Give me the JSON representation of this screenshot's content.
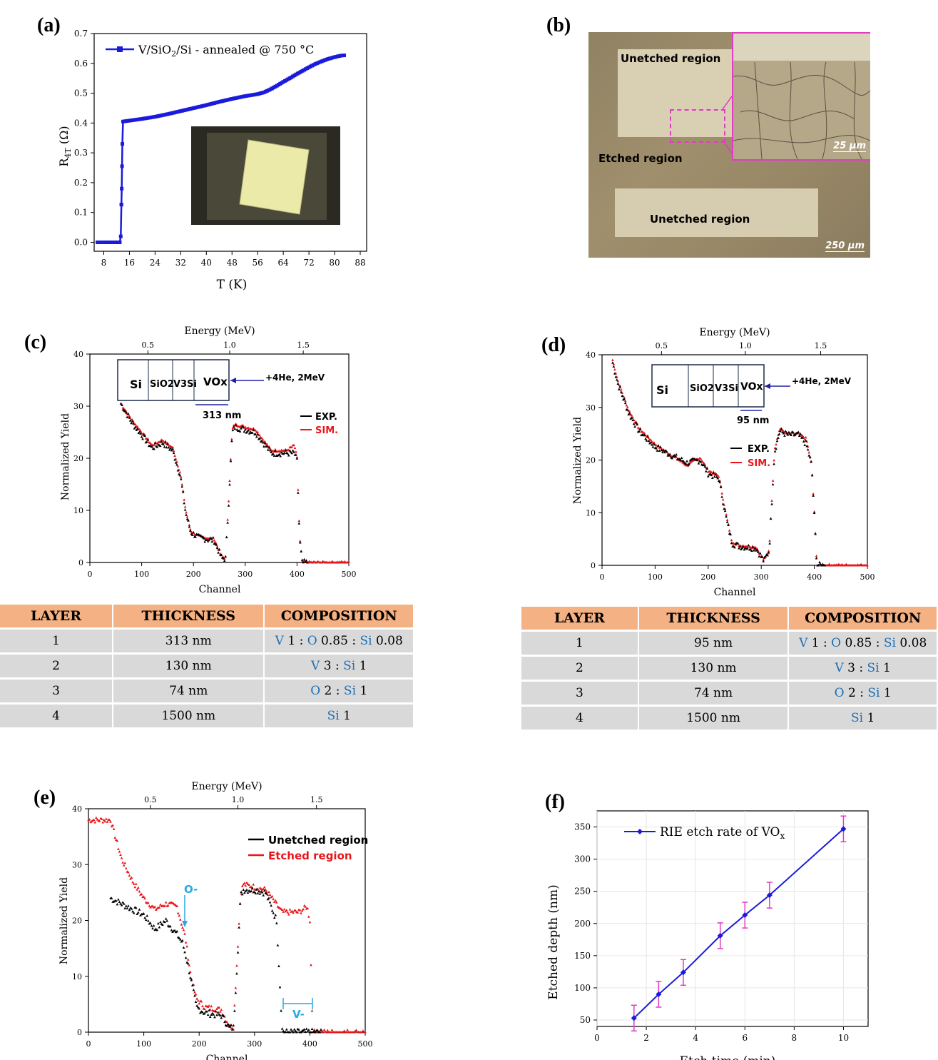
{
  "panel_labels": {
    "a": "(a)",
    "b": "(b)",
    "c": "(c)",
    "d": "(d)",
    "e": "(e)",
    "f": "(f)"
  },
  "colors": {
    "blue": "#1a1adc",
    "red": "#e8161b",
    "black": "#000000",
    "magenta": "#e23bc4",
    "cyan": "#29a9e0",
    "table_header": "#f4b183",
    "table_row": "#d9d9d9",
    "element": "#1f6fb4"
  },
  "panel_a": {
    "legend": "V/SiO2/Si - annealed @ 750 °C",
    "legend_parts": {
      "a": "V/SiO",
      "sub": "2",
      "b": "/Si - annealed @ 750 °C"
    },
    "xlabel": "T (K)",
    "ylabel": "R4T (Ω)",
    "ylabel_parts": {
      "a": "R",
      "sub": "4T",
      "b": " (Ω)"
    },
    "x_ticks": [
      "8",
      "16",
      "24",
      "32",
      "40",
      "48",
      "56",
      "64",
      "72",
      "80",
      "88"
    ],
    "y_ticks": [
      "0.0",
      "0.1",
      "0.2",
      "0.3",
      "0.4",
      "0.5",
      "0.6",
      "0.7"
    ],
    "inset": "photo of sample mounted in holder"
  },
  "panel_b": {
    "labels": [
      "Unetched region",
      "Etched region",
      "Unetched region"
    ],
    "scale_small": "25 µm",
    "scale_large": "250 µm"
  },
  "panel_c": {
    "top_axis_label": "Energy (MeV)",
    "top_ticks": [
      "0.5",
      "1.0",
      "1.5"
    ],
    "xlabel": "Channel",
    "ylabel": "Normalized Yield",
    "x_ticks": [
      "0",
      "100",
      "200",
      "300",
      "400",
      "500"
    ],
    "y_ticks": [
      "0",
      "10",
      "20",
      "30",
      "40"
    ],
    "stack": [
      "Si",
      "SiO2",
      "V3Si",
      "VOx"
    ],
    "beam": "+4He, 2MeV",
    "thickness": "313 nm",
    "legend": [
      "EXP.",
      "SIM."
    ]
  },
  "panel_d": {
    "top_axis_label": "Energy (MeV)",
    "top_ticks": [
      "0.5",
      "1.0",
      "1.5"
    ],
    "xlabel": "Channel",
    "ylabel": "Normalized Yield",
    "x_ticks": [
      "0",
      "100",
      "200",
      "300",
      "400",
      "500"
    ],
    "y_ticks": [
      "0",
      "10",
      "20",
      "30",
      "40"
    ],
    "stack": [
      "Si",
      "SiO2",
      "V3Si",
      "VOx"
    ],
    "beam": "+4He, 2MeV",
    "thickness": "95 nm",
    "legend": [
      "EXP.",
      "SIM."
    ]
  },
  "table_c": {
    "headers": [
      "LAYER",
      "THICKNESS",
      "COMPOSITION"
    ],
    "rows": [
      {
        "layer": "1",
        "thickness": "313 nm",
        "comp": [
          [
            "V",
            " 1 : "
          ],
          [
            "O",
            " 0.85 : "
          ],
          [
            "Si",
            " 0.08"
          ]
        ]
      },
      {
        "layer": "2",
        "thickness": "130 nm",
        "comp": [
          [
            "V",
            " 3 : "
          ],
          [
            "Si",
            " 1"
          ]
        ]
      },
      {
        "layer": "3",
        "thickness": "74 nm",
        "comp": [
          [
            "O",
            " 2 : "
          ],
          [
            "Si",
            " 1"
          ]
        ]
      },
      {
        "layer": "4",
        "thickness": "1500 nm",
        "comp": [
          [
            "Si",
            " 1"
          ]
        ]
      }
    ]
  },
  "table_d": {
    "headers": [
      "LAYER",
      "THICKNESS",
      "COMPOSITION"
    ],
    "rows": [
      {
        "layer": "1",
        "thickness": "95 nm",
        "comp": [
          [
            "V",
            " 1 : "
          ],
          [
            "O",
            " 0.85 : "
          ],
          [
            "Si",
            " 0.08"
          ]
        ]
      },
      {
        "layer": "2",
        "thickness": "130 nm",
        "comp": [
          [
            "V",
            " 3 : "
          ],
          [
            "Si",
            " 1"
          ]
        ]
      },
      {
        "layer": "3",
        "thickness": "74 nm",
        "comp": [
          [
            "O",
            " 2 : "
          ],
          [
            "Si",
            " 1"
          ]
        ]
      },
      {
        "layer": "4",
        "thickness": "1500 nm",
        "comp": [
          [
            "Si",
            " 1"
          ]
        ]
      }
    ]
  },
  "panel_e": {
    "top_axis_label": "Energy (MeV)",
    "top_ticks": [
      "0.5",
      "1.0",
      "1.5"
    ],
    "xlabel": "Channel",
    "ylabel": "Normalized Yield",
    "x_ticks": [
      "0",
      "100",
      "200",
      "300",
      "400",
      "500"
    ],
    "y_ticks": [
      "0",
      "10",
      "20",
      "30",
      "40"
    ],
    "legend": [
      "Unetched region",
      "Etched region"
    ],
    "annot_o": "O-",
    "annot_v": "V-"
  },
  "panel_f": {
    "legend": "RIE etch rate of VOx",
    "legend_parts": {
      "a": "RIE etch rate of VO",
      "sub": "x"
    },
    "xlabel": "Etch time (min)",
    "ylabel": "Etched depth (nm)",
    "x_ticks": [
      "0",
      "2",
      "4",
      "6",
      "8",
      "10"
    ],
    "y_ticks": [
      "50",
      "100",
      "150",
      "200",
      "250",
      "300",
      "350"
    ]
  },
  "chart_data": [
    {
      "id": "a",
      "type": "line",
      "xlabel": "T (K)",
      "ylabel": "R4T (Ω)",
      "xlim": [
        5,
        90
      ],
      "ylim": [
        -0.03,
        0.7
      ],
      "series": [
        {
          "name": "V/SiO2/Si - annealed @ 750 °C",
          "x": [
            6,
            8,
            10,
            12,
            13,
            13.3,
            13.6,
            13.8,
            14,
            16,
            20,
            24,
            28,
            32,
            36,
            40,
            44,
            48,
            52,
            56,
            58,
            60,
            62,
            64,
            66,
            68,
            70,
            72,
            74,
            76,
            78,
            80,
            82,
            83
          ],
          "y": [
            0.0,
            0.0,
            0.0,
            0.0,
            0.0,
            0.02,
            0.18,
            0.33,
            0.405,
            0.408,
            0.414,
            0.421,
            0.43,
            0.44,
            0.45,
            0.46,
            0.471,
            0.481,
            0.49,
            0.497,
            0.503,
            0.513,
            0.525,
            0.538,
            0.55,
            0.563,
            0.575,
            0.587,
            0.598,
            0.607,
            0.615,
            0.621,
            0.626,
            0.627
          ]
        }
      ]
    },
    {
      "id": "c",
      "type": "scatter",
      "xlabel": "Channel",
      "ylabel": "Normalized Yield",
      "xlim": [
        0,
        500
      ],
      "ylim": [
        0,
        40
      ],
      "series": [
        {
          "name": "EXP.",
          "x": [
            60,
            80,
            100,
            120,
            140,
            160,
            175,
            185,
            195,
            210,
            240,
            255,
            262,
            268,
            275,
            280,
            300,
            320,
            350,
            380,
            395,
            400,
            405,
            410,
            450,
            500
          ],
          "y": [
            30.5,
            27.5,
            25,
            22.5,
            23.5,
            22,
            17,
            10,
            6,
            5,
            4.5,
            1,
            1,
            12,
            25.5,
            26.5,
            26,
            25.5,
            21.5,
            21.5,
            22.5,
            20,
            5,
            0,
            0,
            0
          ]
        },
        {
          "name": "SIM.",
          "x": [
            60,
            80,
            100,
            120,
            140,
            160,
            175,
            185,
            195,
            210,
            240,
            255,
            262,
            268,
            275,
            280,
            300,
            320,
            350,
            380,
            395,
            400,
            405,
            410,
            450,
            500
          ],
          "y": [
            30.5,
            27,
            24.5,
            22,
            23,
            21.5,
            16.5,
            9.5,
            5.8,
            4.8,
            4.2,
            0.8,
            0.8,
            11.5,
            25,
            26,
            25.5,
            25,
            21,
            21,
            21,
            19.5,
            4.5,
            0,
            0,
            0
          ]
        }
      ]
    },
    {
      "id": "d",
      "type": "scatter",
      "xlabel": "Channel",
      "ylabel": "Normalized Yield",
      "xlim": [
        0,
        500
      ],
      "ylim": [
        0,
        40
      ],
      "series": [
        {
          "name": "EXP.",
          "x": [
            20,
            30,
            50,
            70,
            100,
            130,
            160,
            185,
            200,
            220,
            235,
            245,
            260,
            290,
            305,
            315,
            325,
            335,
            350,
            370,
            385,
            395,
            400,
            405,
            450,
            500
          ],
          "y": [
            39,
            35,
            29.5,
            26,
            23,
            21,
            19,
            20.5,
            18,
            17,
            9,
            4.5,
            3.8,
            3.5,
            1,
            3,
            22,
            26,
            25,
            25,
            24,
            19,
            10,
            0,
            0,
            0
          ]
        },
        {
          "name": "SIM.",
          "x": [
            20,
            30,
            50,
            70,
            100,
            130,
            160,
            185,
            200,
            220,
            235,
            245,
            260,
            290,
            305,
            315,
            325,
            335,
            350,
            370,
            385,
            395,
            400,
            405,
            450,
            500
          ],
          "y": [
            38.5,
            34.5,
            29,
            25.5,
            22.5,
            21,
            19.5,
            20,
            17.5,
            16.5,
            8.5,
            4.2,
            3.6,
            3.3,
            0.8,
            2.8,
            21.5,
            25.5,
            24.8,
            24.8,
            23,
            19,
            9.5,
            0,
            0,
            0
          ]
        }
      ]
    },
    {
      "id": "e",
      "type": "scatter",
      "xlabel": "Channel",
      "ylabel": "Normalized Yield",
      "xlim": [
        0,
        500
      ],
      "ylim": [
        0,
        40
      ],
      "series": [
        {
          "name": "Unetched region",
          "x": [
            40,
            60,
            80,
            100,
            120,
            140,
            160,
            175,
            185,
            195,
            210,
            240,
            255,
            262,
            268,
            275,
            280,
            300,
            320,
            350,
            380,
            395,
            400,
            405
          ],
          "y": [
            38,
            31,
            27,
            24,
            22,
            23,
            22.5,
            17,
            10,
            6,
            4.5,
            4,
            1,
            1,
            12,
            25,
            26.5,
            26,
            25.5,
            21.5,
            21.5,
            22.5,
            20,
            0
          ]
        },
        {
          "name": "Etched region",
          "x": [
            0,
            20,
            40,
            60,
            80,
            100,
            120,
            140,
            160,
            170,
            180,
            195,
            210,
            240,
            255,
            262,
            268,
            275,
            280,
            300,
            320,
            340,
            350,
            355,
            370,
            500
          ],
          "y": [
            28.5,
            25.5,
            24,
            23,
            22,
            21,
            18.5,
            20,
            17.5,
            16,
            12,
            4.5,
            3.5,
            3,
            0.8,
            0.8,
            11,
            24.5,
            25.5,
            25.5,
            25,
            20,
            0.5,
            0,
            0,
            0
          ]
        }
      ]
    },
    {
      "id": "f",
      "type": "line",
      "xlabel": "Etch time (min)",
      "ylabel": "Etched depth (nm)",
      "xlim": [
        0,
        11
      ],
      "ylim": [
        40,
        375
      ],
      "series": [
        {
          "name": "RIE etch rate of VOx",
          "x": [
            1.5,
            2.5,
            3.5,
            5,
            6,
            7,
            10
          ],
          "y": [
            53,
            90,
            124,
            181,
            213,
            244,
            347
          ],
          "err": [
            20,
            20,
            20,
            20,
            20,
            20,
            20
          ]
        }
      ]
    }
  ]
}
